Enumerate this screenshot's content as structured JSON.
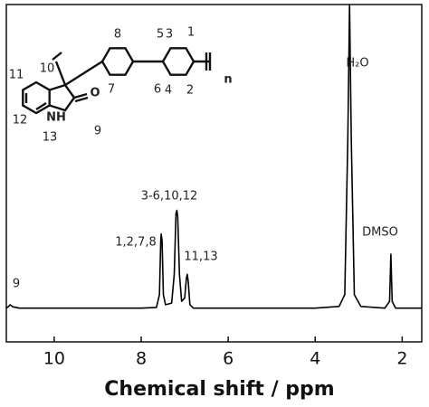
{
  "chart_data": {
    "type": "line",
    "xlabel": "Chemical shift / ppm",
    "xlim": [
      11.1,
      1.55
    ],
    "xticks": [
      10,
      8,
      6,
      4,
      2
    ],
    "ylim": [
      0,
      100
    ],
    "grid": false,
    "series": [
      {
        "color": "#000000",
        "x": [
          11.1,
          11.05,
          11.01,
          10.95,
          10.8,
          8,
          7.65,
          7.58,
          7.55,
          7.54,
          7.52,
          7.49,
          7.44,
          7.3,
          7.24,
          7.2,
          7.18,
          7.16,
          7.12,
          7.07,
          7.0,
          6.96,
          6.94,
          6.92,
          6.88,
          6.8,
          4,
          3.45,
          3.32,
          3.25,
          3.21,
          3.17,
          3.1,
          2.95,
          2.4,
          2.29,
          2.26,
          2.23,
          2.15,
          1.55
        ],
        "values": [
          10,
          10.5,
          11,
          10.4,
          10,
          10,
          10.2,
          14,
          30,
          32,
          30,
          14,
          11,
          11.5,
          20,
          38,
          39,
          37,
          20,
          12,
          13,
          19,
          20,
          18,
          11,
          10,
          10,
          10.5,
          14,
          60,
          100,
          60,
          14,
          10.5,
          10,
          12,
          26,
          12,
          10,
          10
        ]
      }
    ],
    "annotations": [
      "9",
      "1,2,7,8",
      "3-6,10,12",
      "11,13",
      "H₂O",
      "DMSO"
    ],
    "structure_labels": [
      "8",
      "5",
      "3",
      "1",
      "10",
      "7",
      "6",
      "4",
      "2",
      "11",
      "12",
      "13",
      "9",
      "n",
      "NH",
      "O"
    ]
  }
}
